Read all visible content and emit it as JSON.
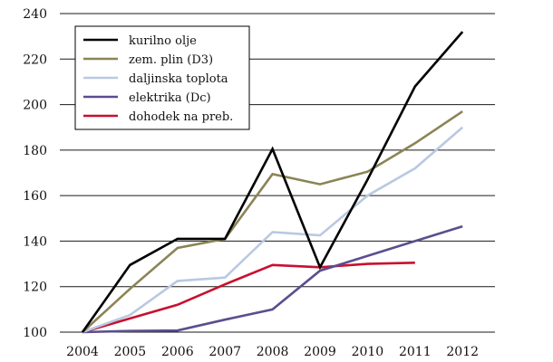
{
  "chart_data": {
    "type": "line",
    "title": "",
    "xlabel": "",
    "ylabel": "",
    "x": [
      "2004",
      "2005",
      "2006",
      "2007",
      "2008",
      "2009",
      "2010",
      "2011",
      "2012"
    ],
    "ylim": [
      100,
      240
    ],
    "yticks": [
      100,
      120,
      140,
      160,
      180,
      200,
      220,
      240
    ],
    "grid": "horizontal",
    "legend_position": "top-left",
    "series": [
      {
        "name": "kurilno olje",
        "color": "#000000",
        "values": [
          100,
          129.5,
          141,
          141,
          180.5,
          128.5,
          167,
          208,
          232
        ]
      },
      {
        "name": "zem. plin (D3)",
        "color": "#8b8456",
        "values": [
          100,
          119,
          137,
          141,
          169.5,
          165,
          170.5,
          183,
          197
        ]
      },
      {
        "name": "daljinska toplota",
        "color": "#b9c9e2",
        "values": [
          100,
          107.5,
          122.5,
          124,
          144,
          142.5,
          160,
          172,
          190
        ]
      },
      {
        "name": "elektrika (Dc)",
        "color": "#5c4d8e",
        "values": [
          100,
          100.5,
          100.7,
          105.5,
          110,
          127,
          133.5,
          140,
          146.5
        ]
      },
      {
        "name": "dohodek na preb.",
        "color": "#c8102e",
        "values": [
          100,
          106,
          112,
          121,
          129.5,
          128.5,
          130,
          130.5,
          null
        ]
      }
    ]
  }
}
